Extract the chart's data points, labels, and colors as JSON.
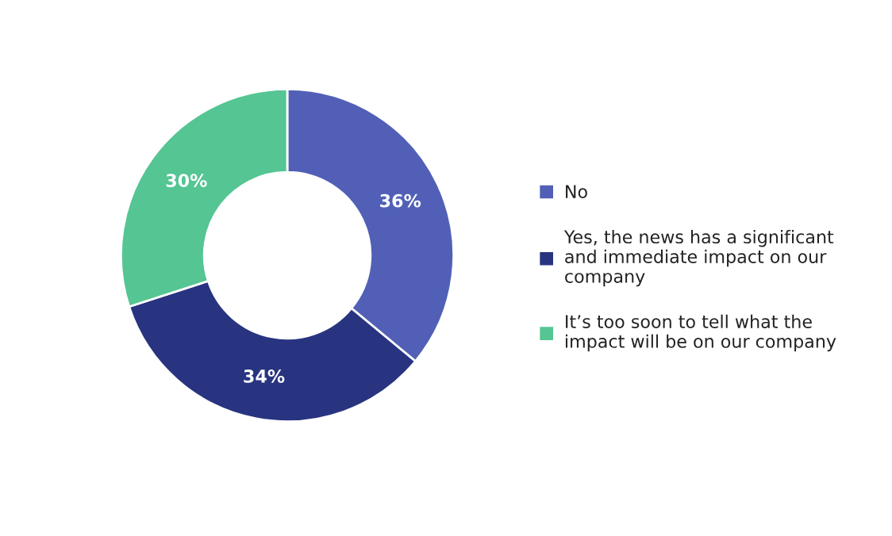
{
  "chart_data": {
    "type": "donut",
    "categories": [
      "No",
      "Yes, the news has a significant\nand immediate impact on our\ncompany",
      "It’s too soon to tell what the\nimpact will be on our company"
    ],
    "values": [
      36,
      34,
      30
    ],
    "colors": [
      "#5160b6",
      "#283480",
      "#55c593"
    ],
    "value_labels": [
      "36%",
      "34%",
      "30%"
    ],
    "legend": "right"
  }
}
